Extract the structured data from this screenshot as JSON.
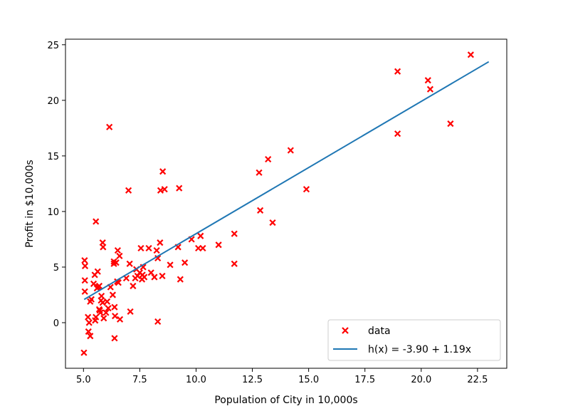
{
  "chart_data": {
    "type": "scatter",
    "xlabel": "Population of City in 10,000s",
    "ylabel": "Profit in $10,000s",
    "xlim": [
      4.2,
      23.8
    ],
    "ylim": [
      -4.1,
      25.5
    ],
    "xticks": [
      "5.0",
      "7.5",
      "10.0",
      "12.5",
      "15.0",
      "17.5",
      "20.0",
      "22.5"
    ],
    "xtick_values": [
      5.0,
      7.5,
      10.0,
      12.5,
      15.0,
      17.5,
      20.0,
      22.5
    ],
    "yticks": [
      "0",
      "5",
      "10",
      "15",
      "20",
      "25"
    ],
    "ytick_values": [
      0,
      5,
      10,
      15,
      20,
      25
    ],
    "grid": false,
    "legend_position": "bottom-right",
    "series": [
      {
        "name": "data",
        "kind": "scatter",
        "marker": "x",
        "color": "#ff0000",
        "points": [
          [
            5.05,
            5.6
          ],
          [
            5.07,
            5.1
          ],
          [
            5.06,
            3.8
          ],
          [
            5.06,
            2.8
          ],
          [
            5.02,
            -2.7
          ],
          [
            5.2,
            0.5
          ],
          [
            5.25,
            0.0
          ],
          [
            5.22,
            -0.8
          ],
          [
            5.3,
            -1.2
          ],
          [
            5.3,
            1.9
          ],
          [
            5.35,
            2.1
          ],
          [
            5.45,
            3.5
          ],
          [
            5.5,
            4.3
          ],
          [
            5.52,
            0.2
          ],
          [
            5.55,
            0.5
          ],
          [
            5.55,
            9.1
          ],
          [
            5.6,
            3.1
          ],
          [
            5.63,
            4.6
          ],
          [
            5.65,
            3.2
          ],
          [
            5.7,
            3.3
          ],
          [
            5.7,
            1.2
          ],
          [
            5.72,
            1.1
          ],
          [
            5.75,
            0.9
          ],
          [
            5.78,
            2.0
          ],
          [
            5.8,
            2.4
          ],
          [
            5.85,
            1.8
          ],
          [
            5.85,
            7.2
          ],
          [
            5.87,
            6.8
          ],
          [
            5.9,
            0.4
          ],
          [
            6.0,
            0.9
          ],
          [
            6.05,
            1.9
          ],
          [
            6.1,
            1.3
          ],
          [
            6.15,
            17.6
          ],
          [
            6.2,
            3.2
          ],
          [
            6.3,
            2.5
          ],
          [
            6.35,
            5.3
          ],
          [
            6.35,
            5.5
          ],
          [
            6.38,
            1.4
          ],
          [
            6.4,
            0.6
          ],
          [
            6.38,
            -1.4
          ],
          [
            6.45,
            5.4
          ],
          [
            6.5,
            3.7
          ],
          [
            6.52,
            6.5
          ],
          [
            6.55,
            3.6
          ],
          [
            6.6,
            6.0
          ],
          [
            6.62,
            0.3
          ],
          [
            6.9,
            4.0
          ],
          [
            7.0,
            11.9
          ],
          [
            7.05,
            5.3
          ],
          [
            7.08,
            1.0
          ],
          [
            7.2,
            3.3
          ],
          [
            7.3,
            4.0
          ],
          [
            7.35,
            4.8
          ],
          [
            7.4,
            4.2
          ],
          [
            7.5,
            4.5
          ],
          [
            7.55,
            6.7
          ],
          [
            7.6,
            3.9
          ],
          [
            7.62,
            4.3
          ],
          [
            7.65,
            5.0
          ],
          [
            7.7,
            4.1
          ],
          [
            7.9,
            6.7
          ],
          [
            8.0,
            4.5
          ],
          [
            8.15,
            4.1
          ],
          [
            8.25,
            6.5
          ],
          [
            8.3,
            0.1
          ],
          [
            8.3,
            5.8
          ],
          [
            8.4,
            7.2
          ],
          [
            8.42,
            11.9
          ],
          [
            8.5,
            4.2
          ],
          [
            8.52,
            13.6
          ],
          [
            8.6,
            12.0
          ],
          [
            8.85,
            5.2
          ],
          [
            9.2,
            6.8
          ],
          [
            9.25,
            12.1
          ],
          [
            9.3,
            3.9
          ],
          [
            9.5,
            5.4
          ],
          [
            9.8,
            7.5
          ],
          [
            10.1,
            6.7
          ],
          [
            10.2,
            7.8
          ],
          [
            10.3,
            6.7
          ],
          [
            11.0,
            7.0
          ],
          [
            11.7,
            8.0
          ],
          [
            11.7,
            5.3
          ],
          [
            12.8,
            13.5
          ],
          [
            12.85,
            10.1
          ],
          [
            13.2,
            14.7
          ],
          [
            13.4,
            9.0
          ],
          [
            14.2,
            15.5
          ],
          [
            14.9,
            12.0
          ],
          [
            18.95,
            22.6
          ],
          [
            18.95,
            17.0
          ],
          [
            20.3,
            21.8
          ],
          [
            20.4,
            21.0
          ],
          [
            21.3,
            17.9
          ],
          [
            22.2,
            24.1
          ]
        ]
      },
      {
        "name": "h(x) = -3.90 + 1.19x",
        "kind": "line",
        "color": "#1f77b4",
        "points": [
          [
            5.03,
            2.09
          ],
          [
            23.0,
            23.47
          ]
        ]
      }
    ]
  }
}
